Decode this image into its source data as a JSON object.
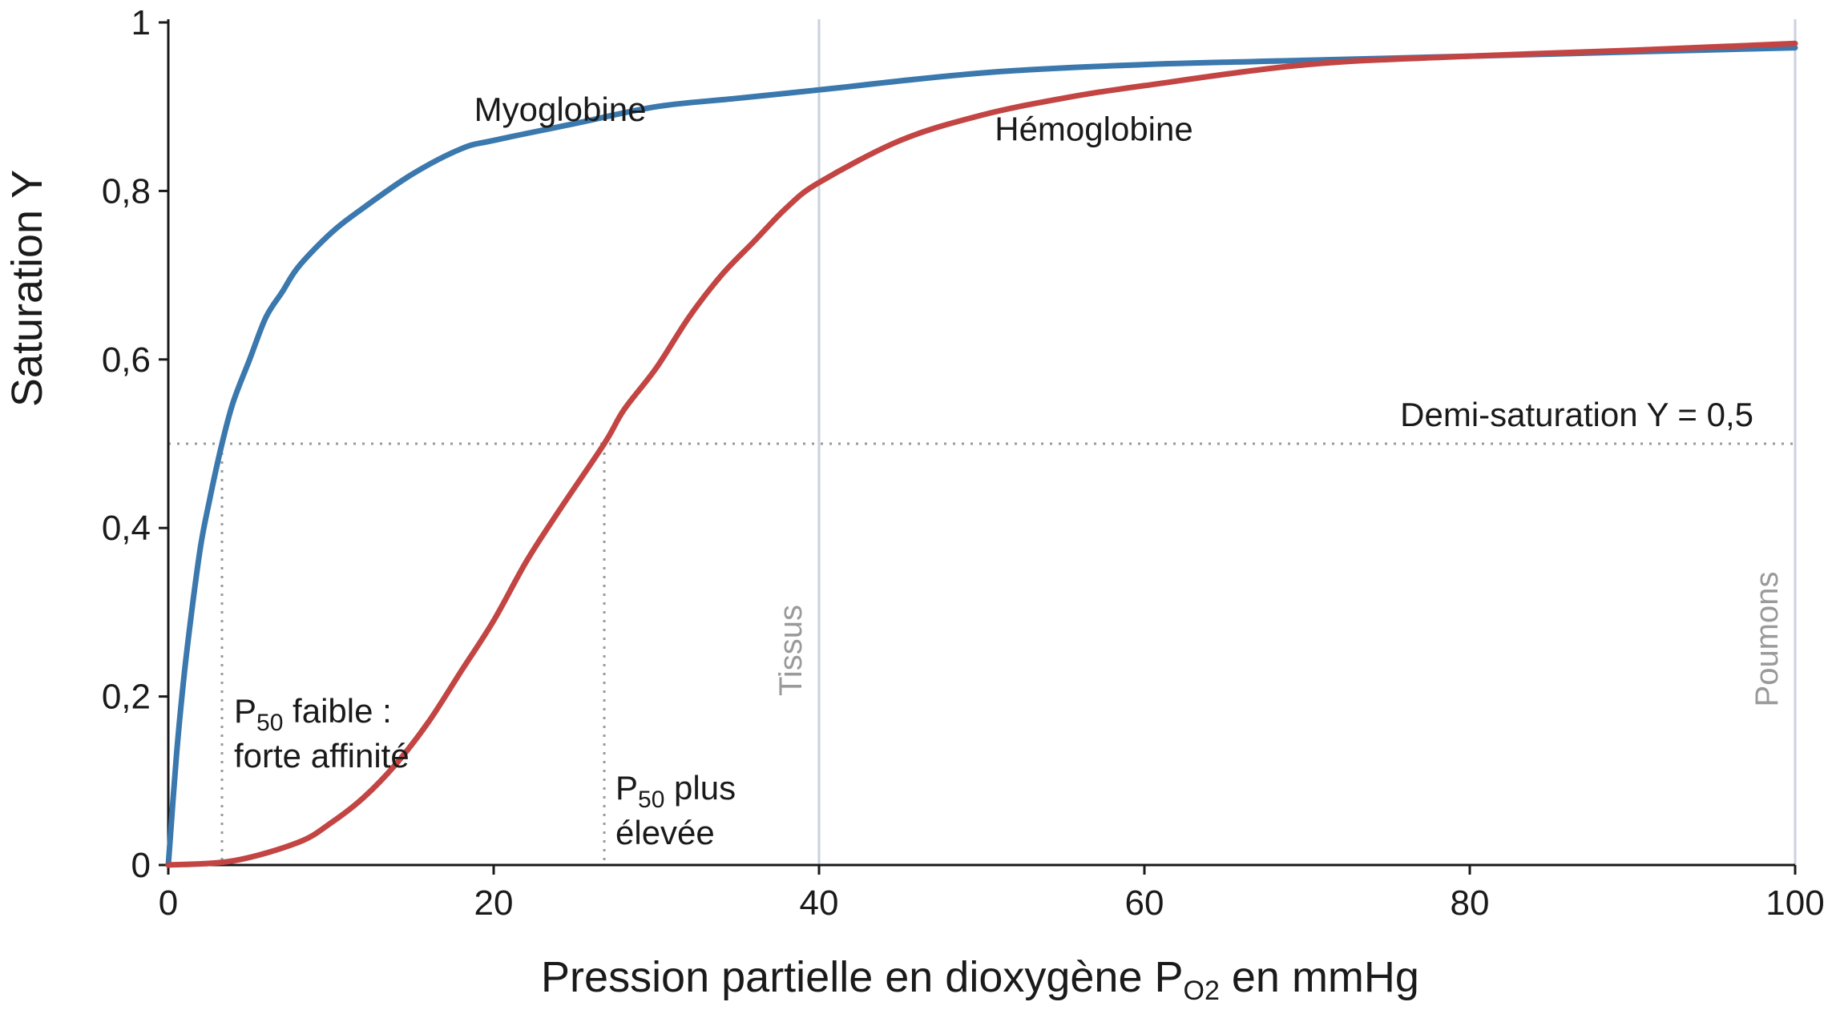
{
  "chart_data": {
    "type": "line",
    "xlabel": {
      "main": "Pression partielle en dioxygène P",
      "sub": "O2",
      "suffix": " en mmHg"
    },
    "ylabel": "Saturation Y",
    "xlim": [
      0,
      100
    ],
    "ylim": [
      0,
      1
    ],
    "x_ticks": [
      0,
      20,
      40,
      60,
      80,
      100
    ],
    "x_tick_labels": [
      "0",
      "20",
      "40",
      "60",
      "80",
      "100"
    ],
    "y_ticks": [
      0,
      0.2,
      0.4,
      0.6,
      0.8,
      1
    ],
    "y_tick_labels": [
      "0",
      "0,2",
      "0,4",
      "0,6",
      "0,8",
      "1"
    ],
    "grid": false,
    "series": [
      {
        "name": "Myoglobine",
        "color": "#3a78ad",
        "x": [
          0,
          0.5,
          1,
          1.5,
          2,
          2.5,
          3.3,
          4,
          5,
          6,
          7,
          8,
          10,
          12,
          15,
          18,
          20,
          25,
          30,
          35,
          40,
          50,
          60,
          70,
          80,
          90,
          100
        ],
        "y": [
          0,
          0.13,
          0.23,
          0.31,
          0.38,
          0.43,
          0.5,
          0.55,
          0.6,
          0.65,
          0.68,
          0.71,
          0.75,
          0.78,
          0.82,
          0.85,
          0.86,
          0.88,
          0.9,
          0.91,
          0.92,
          0.94,
          0.95,
          0.955,
          0.96,
          0.965,
          0.97
        ]
      },
      {
        "name": "Hémoglobine",
        "color": "#c34543",
        "x": [
          0,
          4,
          8,
          10,
          12,
          14,
          16,
          18,
          20,
          22,
          24,
          26.8,
          28,
          30,
          32,
          34,
          36,
          38,
          40,
          45,
          50,
          55,
          60,
          70,
          80,
          90,
          100
        ],
        "y": [
          0,
          0.005,
          0.027,
          0.05,
          0.08,
          0.12,
          0.17,
          0.23,
          0.29,
          0.36,
          0.42,
          0.5,
          0.54,
          0.59,
          0.65,
          0.7,
          0.74,
          0.78,
          0.81,
          0.86,
          0.89,
          0.91,
          0.925,
          0.95,
          0.96,
          0.967,
          0.975
        ]
      }
    ],
    "series_labels": [
      {
        "text": "Myoglobine",
        "x": 18.8,
        "y": 0.883
      },
      {
        "text": "Hémoglobine",
        "x": 50.8,
        "y": 0.86
      }
    ],
    "half_saturation": {
      "y": 0.5,
      "label": "Demi-saturation Y = 0,5"
    },
    "p50_markers": [
      {
        "x": 3.3,
        "line1_main": "P",
        "line1_sub": "50",
        "line1_rest": " faible :",
        "line2": "forte affinité"
      },
      {
        "x": 26.8,
        "line1_main": "P",
        "line1_sub": "50",
        "line1_rest": " plus",
        "line2": "élevée"
      }
    ],
    "reference_lines": [
      {
        "x": 40,
        "label": "Tissus"
      },
      {
        "x": 100,
        "label": "Poumons"
      }
    ]
  }
}
